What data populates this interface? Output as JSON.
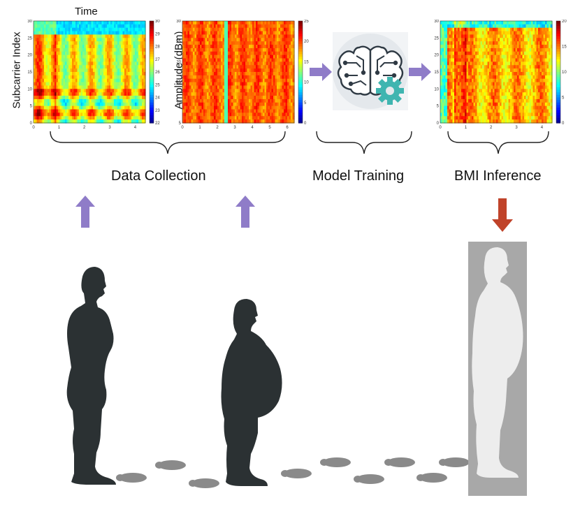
{
  "panel1": {
    "title": "Time",
    "ylabel": "Subcarrier Index",
    "xticks": [
      "0",
      "1",
      "2",
      "3",
      "4"
    ],
    "yticks": [
      "0",
      "5",
      "10",
      "15",
      "20",
      "25",
      "30"
    ],
    "cbar_ticks": [
      "22",
      "23",
      "24",
      "25",
      "26",
      "27",
      "28",
      "29",
      "30"
    ]
  },
  "panel2": {
    "ylabel": "Amplitude (dBm)",
    "xticks": [
      "0",
      "1",
      "2",
      "3",
      "4",
      "5",
      "6"
    ],
    "yticks": [
      "5",
      "10",
      "15",
      "20",
      "25",
      "30"
    ],
    "cbar_ticks": [
      "0",
      "5",
      "10",
      "15",
      "20",
      "25"
    ]
  },
  "panel3": {
    "xticks": [
      "0",
      "1",
      "2",
      "3",
      "4"
    ],
    "yticks": [
      "0",
      "5",
      "10",
      "15",
      "20",
      "25",
      "30"
    ],
    "cbar_ticks": [
      "0",
      "5",
      "10",
      "15",
      "20"
    ]
  },
  "labels": {
    "data_collection": "Data Collection",
    "model_training": "Model Training",
    "bmi_inference": "BMI Inference"
  },
  "colors": {
    "purple_arrow": "#8f7cc8",
    "red_arrow": "#c0432a",
    "silhouette": "#2b3133",
    "footprint": "#8a8a8a",
    "inference_panel": "#a8a8a8",
    "inference_figure": "#ededed",
    "brain_bg": "#e4e8ec",
    "gear": "#3fb5b0"
  },
  "icons": [
    "brain-gear-icon",
    "up-arrow-icon",
    "down-arrow-icon",
    "right-arrow-icon",
    "footprint-icon"
  ]
}
